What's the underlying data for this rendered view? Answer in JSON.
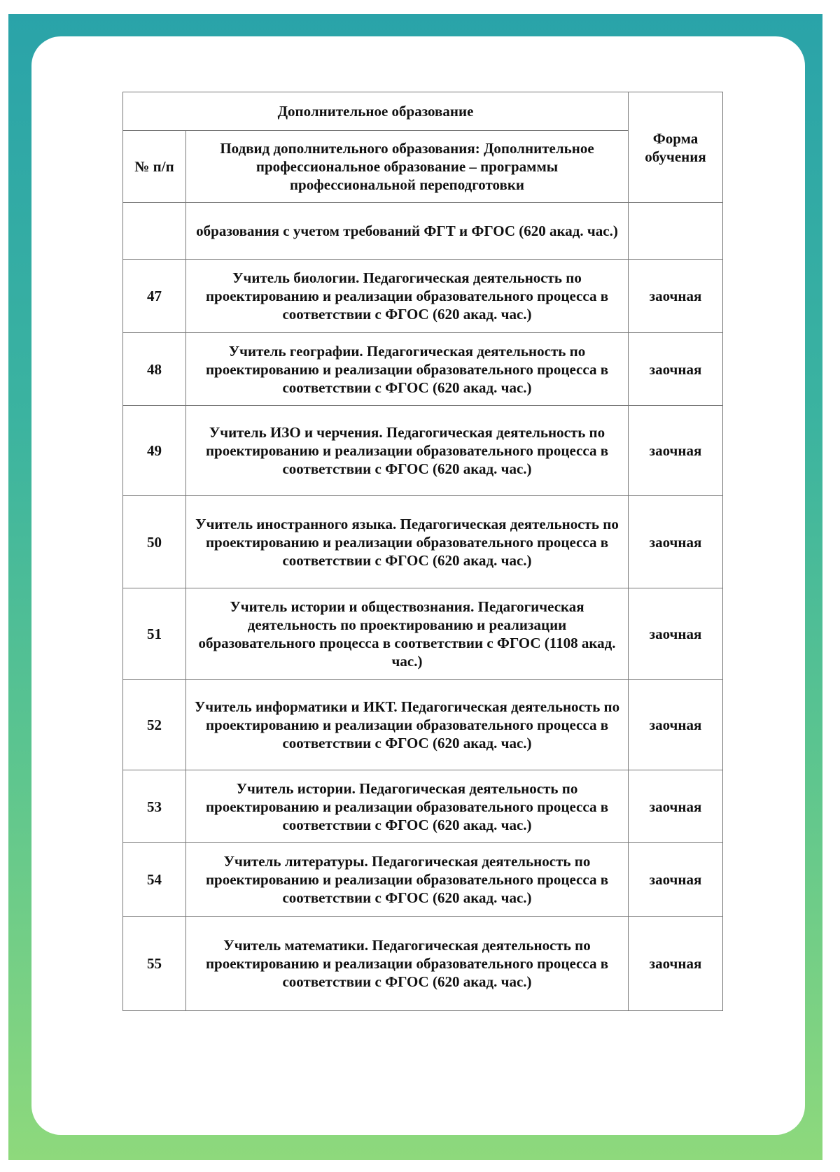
{
  "header": {
    "title": "Дополнительное образование",
    "col_num": "№ п/п",
    "col_subtype": "Подвид дополнительного образования: Дополнительное профессиональное образование – программы профессиональной переподготовки",
    "col_form": "Форма обучения"
  },
  "rows": [
    {
      "num": "",
      "name": "образования с учетом требований ФГТ и ФГОС (620 акад. час.)",
      "form": ""
    },
    {
      "num": "47",
      "name": "Учитель биологии. Педагогическая деятельность по проектированию и реализации образовательного процесса в соответствии с ФГОС (620 акад. час.)",
      "form": "заочная"
    },
    {
      "num": "48",
      "name": "Учитель географии. Педагогическая деятельность по проектированию и реализации образовательного процесса в соответствии с ФГОС (620 акад. час.)",
      "form": "заочная"
    },
    {
      "num": "49",
      "name": "Учитель ИЗО и черчения. Педагогическая деятельность по проектированию и реализации образовательного процесса в соответствии с ФГОС (620 акад. час.)",
      "form": "заочная"
    },
    {
      "num": "50",
      "name": "Учитель иностранного языка. Педагогическая деятельность по проектированию и реализации образовательного процесса в соответствии с ФГОС (620 акад. час.)",
      "form": "заочная"
    },
    {
      "num": "51",
      "name": "Учитель истории и обществознания. Педагогическая деятельность по проектированию и реализации образовательного процесса в соответствии с ФГОС (1108 акад. час.)",
      "form": "заочная"
    },
    {
      "num": "52",
      "name": "Учитель информатики и ИКТ. Педагогическая деятельность по проектированию и реализации образовательного процесса в соответствии с ФГОС (620 акад. час.)",
      "form": "заочная"
    },
    {
      "num": "53",
      "name": "Учитель истории. Педагогическая деятельность по проектированию и реализации образовательного процесса в соответствии с ФГОС (620 акад. час.)",
      "form": "заочная"
    },
    {
      "num": "54",
      "name": "Учитель литературы. Педагогическая деятельность по проектированию и реализации образовательного процесса в соответствии с ФГОС (620 акад. час.)",
      "form": "заочная"
    },
    {
      "num": "55",
      "name": "Учитель математики. Педагогическая деятельность по проектированию и реализации образовательного процесса в соответствии с ФГОС (620 акад. час.)",
      "form": "заочная"
    }
  ]
}
